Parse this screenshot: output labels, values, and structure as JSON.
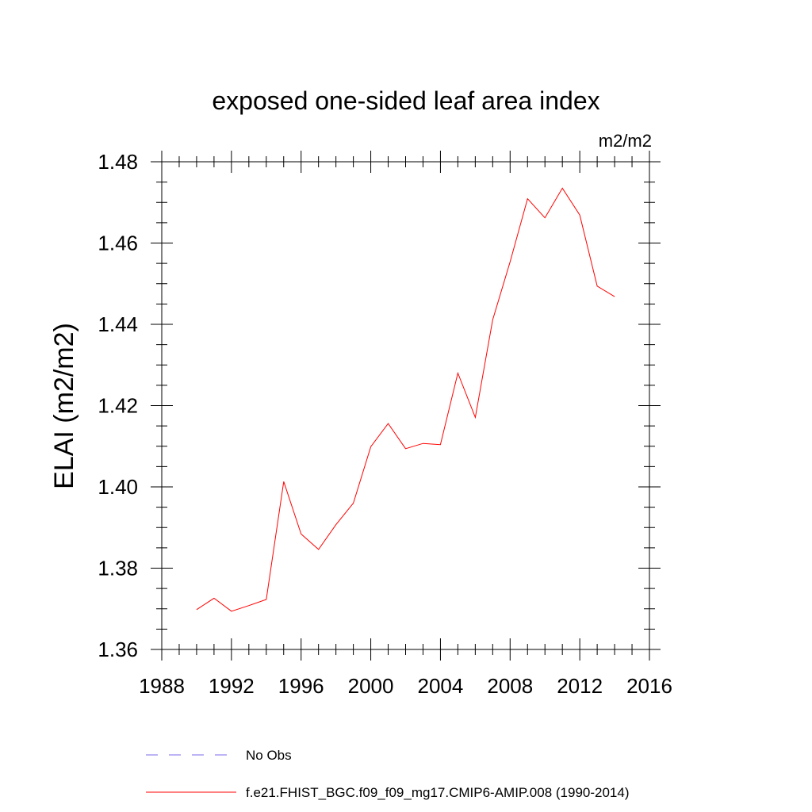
{
  "chart_data": {
    "type": "line",
    "title": "exposed one-sided leaf area index",
    "units": "m2/m2",
    "ylabel": "ELAI  (m2/m2)",
    "xlabel": "",
    "xlim": [
      1988,
      2016
    ],
    "ylim": [
      1.36,
      1.48
    ],
    "xticks": [
      1988,
      1992,
      1996,
      2000,
      2004,
      2008,
      2012,
      2016
    ],
    "xtick_labels": [
      "1988",
      "1992",
      "1996",
      "2000",
      "2004",
      "2008",
      "2012",
      "2016"
    ],
    "yticks": [
      1.36,
      1.38,
      1.4,
      1.42,
      1.44,
      1.46,
      1.48
    ],
    "ytick_labels": [
      "1.36",
      "1.38",
      "1.40",
      "1.42",
      "1.44",
      "1.46",
      "1.48"
    ],
    "series": [
      {
        "name": "f.e21.FHIST_BGC.f09_f09_mg17.CMIP6-AMIP.008 (1990-2014)",
        "color": "#ff0000",
        "x": [
          1990,
          1991,
          1992,
          1993,
          1994,
          1995,
          1996,
          1997,
          1998,
          1999,
          2000,
          2001,
          2002,
          2003,
          2004,
          2005,
          2006,
          2007,
          2008,
          2009,
          2010,
          2011,
          2012,
          2013,
          2014
        ],
        "y": [
          1.3698,
          1.3726,
          1.3694,
          1.3708,
          1.3723,
          1.4013,
          1.3884,
          1.3846,
          1.3907,
          1.396,
          1.4099,
          1.4156,
          1.4094,
          1.4107,
          1.4104,
          1.428,
          1.4171,
          1.4411,
          1.4554,
          1.4709,
          1.4662,
          1.4735,
          1.4669,
          1.4494,
          1.4468
        ]
      }
    ],
    "legend": [
      {
        "label": "No Obs",
        "style": "dashed",
        "color": "#7b68ee"
      },
      {
        "label": "f.e21.FHIST_BGC.f09_f09_mg17.CMIP6-AMIP.008 (1990-2014)",
        "style": "solid",
        "color": "#ff0000"
      }
    ]
  }
}
